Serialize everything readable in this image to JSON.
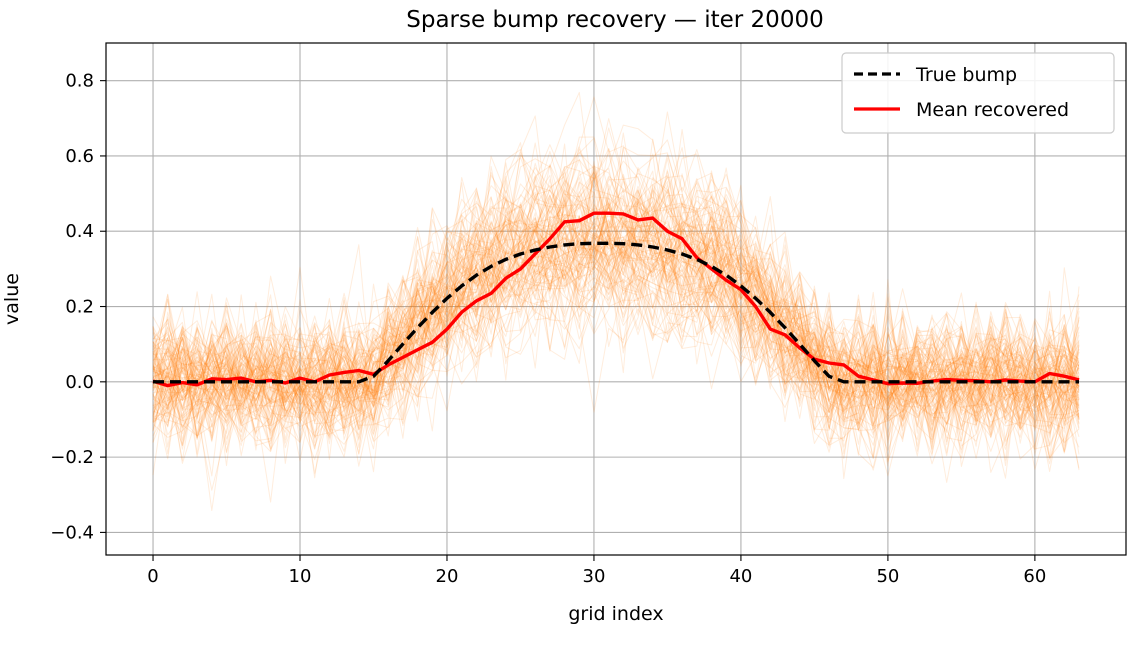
{
  "chart_data": {
    "type": "line",
    "title": "Sparse bump recovery — iter 20000",
    "xlabel": "grid index",
    "ylabel": "value",
    "xlim": [
      -3.2,
      66.2
    ],
    "ylim": [
      -0.46,
      0.9
    ],
    "xticks": [
      0,
      10,
      20,
      30,
      40,
      50,
      60
    ],
    "xtick_labels": [
      "0",
      "10",
      "20",
      "30",
      "40",
      "50",
      "60"
    ],
    "yticks": [
      -0.4,
      -0.2,
      0.0,
      0.2,
      0.4,
      0.6,
      0.8
    ],
    "ytick_labels": [
      "−0.4",
      "−0.2",
      "0.0",
      "0.2",
      "0.4",
      "0.6",
      "0.8"
    ],
    "grid": true,
    "legend_position": "top-right",
    "colors": {
      "samples": "#ff7f0e",
      "true": "#000000",
      "mean": "#ff0000",
      "grid": "#b0b0b0"
    },
    "samples": {
      "count": 120,
      "noise_sd": 0.085,
      "description_free": true
    },
    "series": [
      {
        "name": "True bump",
        "style": "dashed",
        "x": [
          0,
          1,
          2,
          3,
          4,
          5,
          6,
          7,
          8,
          9,
          10,
          11,
          12,
          13,
          14,
          15,
          16,
          17,
          18,
          19,
          20,
          21,
          22,
          23,
          24,
          25,
          26,
          27,
          28,
          29,
          30,
          31,
          32,
          33,
          34,
          35,
          36,
          37,
          38,
          39,
          40,
          41,
          42,
          43,
          44,
          45,
          46,
          47,
          48,
          49,
          50,
          51,
          52,
          53,
          54,
          55,
          56,
          57,
          58,
          59,
          60,
          61,
          62,
          63
        ],
        "values": [
          0,
          0,
          0,
          0,
          0,
          0,
          0,
          0,
          0,
          0,
          0,
          0,
          0,
          0,
          0,
          0.0146,
          0.0559,
          0.1004,
          0.1437,
          0.1845,
          0.2218,
          0.2549,
          0.2833,
          0.3066,
          0.3251,
          0.3394,
          0.3501,
          0.3581,
          0.3636,
          0.3668,
          0.368,
          0.368,
          0.3668,
          0.3636,
          0.3581,
          0.3501,
          0.3394,
          0.3251,
          0.3066,
          0.2833,
          0.2549,
          0.2218,
          0.1845,
          0.1437,
          0.1004,
          0.0559,
          0.0146,
          0,
          0,
          0,
          0,
          0,
          0,
          0,
          0,
          0,
          0,
          0,
          0,
          0,
          0,
          0,
          0,
          0
        ]
      },
      {
        "name": "Mean recovered",
        "style": "solid",
        "x": [
          0,
          1,
          2,
          3,
          4,
          5,
          6,
          7,
          8,
          9,
          10,
          11,
          12,
          13,
          14,
          15,
          16,
          17,
          18,
          19,
          20,
          21,
          22,
          23,
          24,
          25,
          26,
          27,
          28,
          29,
          30,
          31,
          32,
          33,
          34,
          35,
          36,
          37,
          38,
          39,
          40,
          41,
          42,
          43,
          44,
          45,
          46,
          47,
          48,
          49,
          50,
          51,
          52,
          53,
          54,
          55,
          56,
          57,
          58,
          59,
          60,
          61,
          62,
          63
        ],
        "values": [
          0.002,
          -0.01,
          -0.002,
          -0.008,
          0.008,
          0.006,
          0.01,
          0.0,
          0.004,
          -0.003,
          0.01,
          0.0,
          0.018,
          0.025,
          0.03,
          0.02,
          0.045,
          0.065,
          0.085,
          0.105,
          0.14,
          0.185,
          0.215,
          0.235,
          0.275,
          0.3,
          0.34,
          0.38,
          0.425,
          0.428,
          0.448,
          0.448,
          0.446,
          0.43,
          0.435,
          0.4,
          0.38,
          0.33,
          0.3,
          0.27,
          0.245,
          0.2,
          0.14,
          0.125,
          0.09,
          0.06,
          0.05,
          0.045,
          0.015,
          0.005,
          -0.005,
          -0.003,
          -0.004,
          0.002,
          0.006,
          0.004,
          0.003,
          0.0,
          0.005,
          0.002,
          0.0,
          0.022,
          0.015,
          0.005
        ]
      }
    ]
  }
}
